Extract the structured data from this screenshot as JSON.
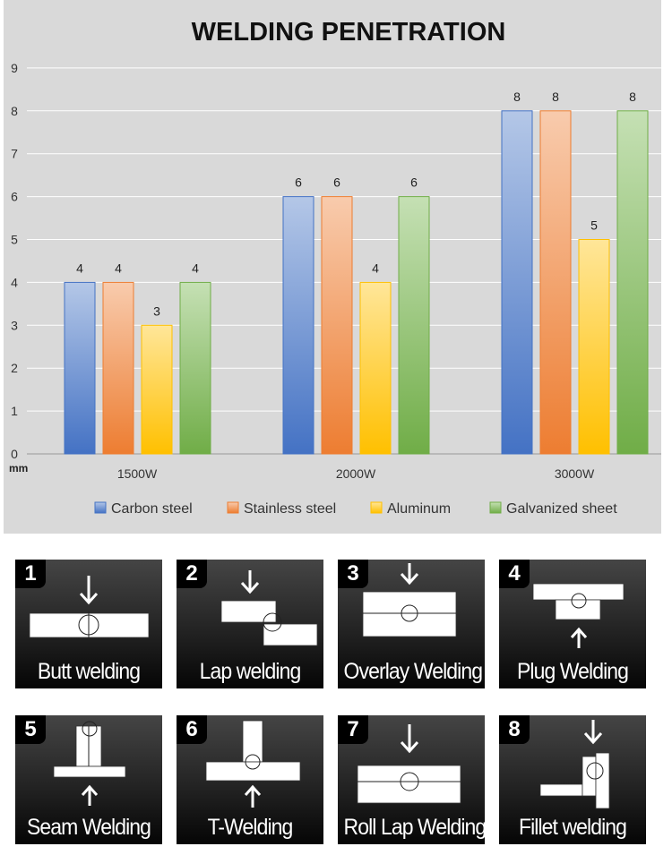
{
  "chart_data": {
    "type": "bar",
    "title": "WELDING PENETRATION",
    "ylabel": "mm",
    "xlabel": "",
    "ylim": [
      0,
      9
    ],
    "yticks": [
      "0",
      "1",
      "2",
      "3",
      "4",
      "5",
      "6",
      "7",
      "8",
      "9"
    ],
    "categories": [
      "1500W",
      "2000W",
      "3000W"
    ],
    "series": [
      {
        "name": "Carbon steel",
        "values": [
          4,
          6,
          8
        ],
        "color": "#4472c4"
      },
      {
        "name": "Stainless steel",
        "values": [
          4,
          6,
          8
        ],
        "color": "#ed7d31"
      },
      {
        "name": "Aluminum",
        "values": [
          3,
          4,
          5
        ],
        "color": "#ffc000"
      },
      {
        "name": "Galvanized sheet",
        "values": [
          4,
          6,
          8
        ],
        "color": "#70ad47"
      }
    ],
    "grid": true,
    "legend": "bottom"
  },
  "types": [
    {
      "num": "1",
      "label": "Butt welding"
    },
    {
      "num": "2",
      "label": "Lap welding"
    },
    {
      "num": "3",
      "label": "Overlay Welding"
    },
    {
      "num": "4",
      "label": "Plug Welding"
    },
    {
      "num": "5",
      "label": "Seam Welding"
    },
    {
      "num": "6",
      "label": "T-Welding"
    },
    {
      "num": "7",
      "label": "Roll Lap Welding"
    },
    {
      "num": "8",
      "label": "Fillet welding"
    }
  ]
}
